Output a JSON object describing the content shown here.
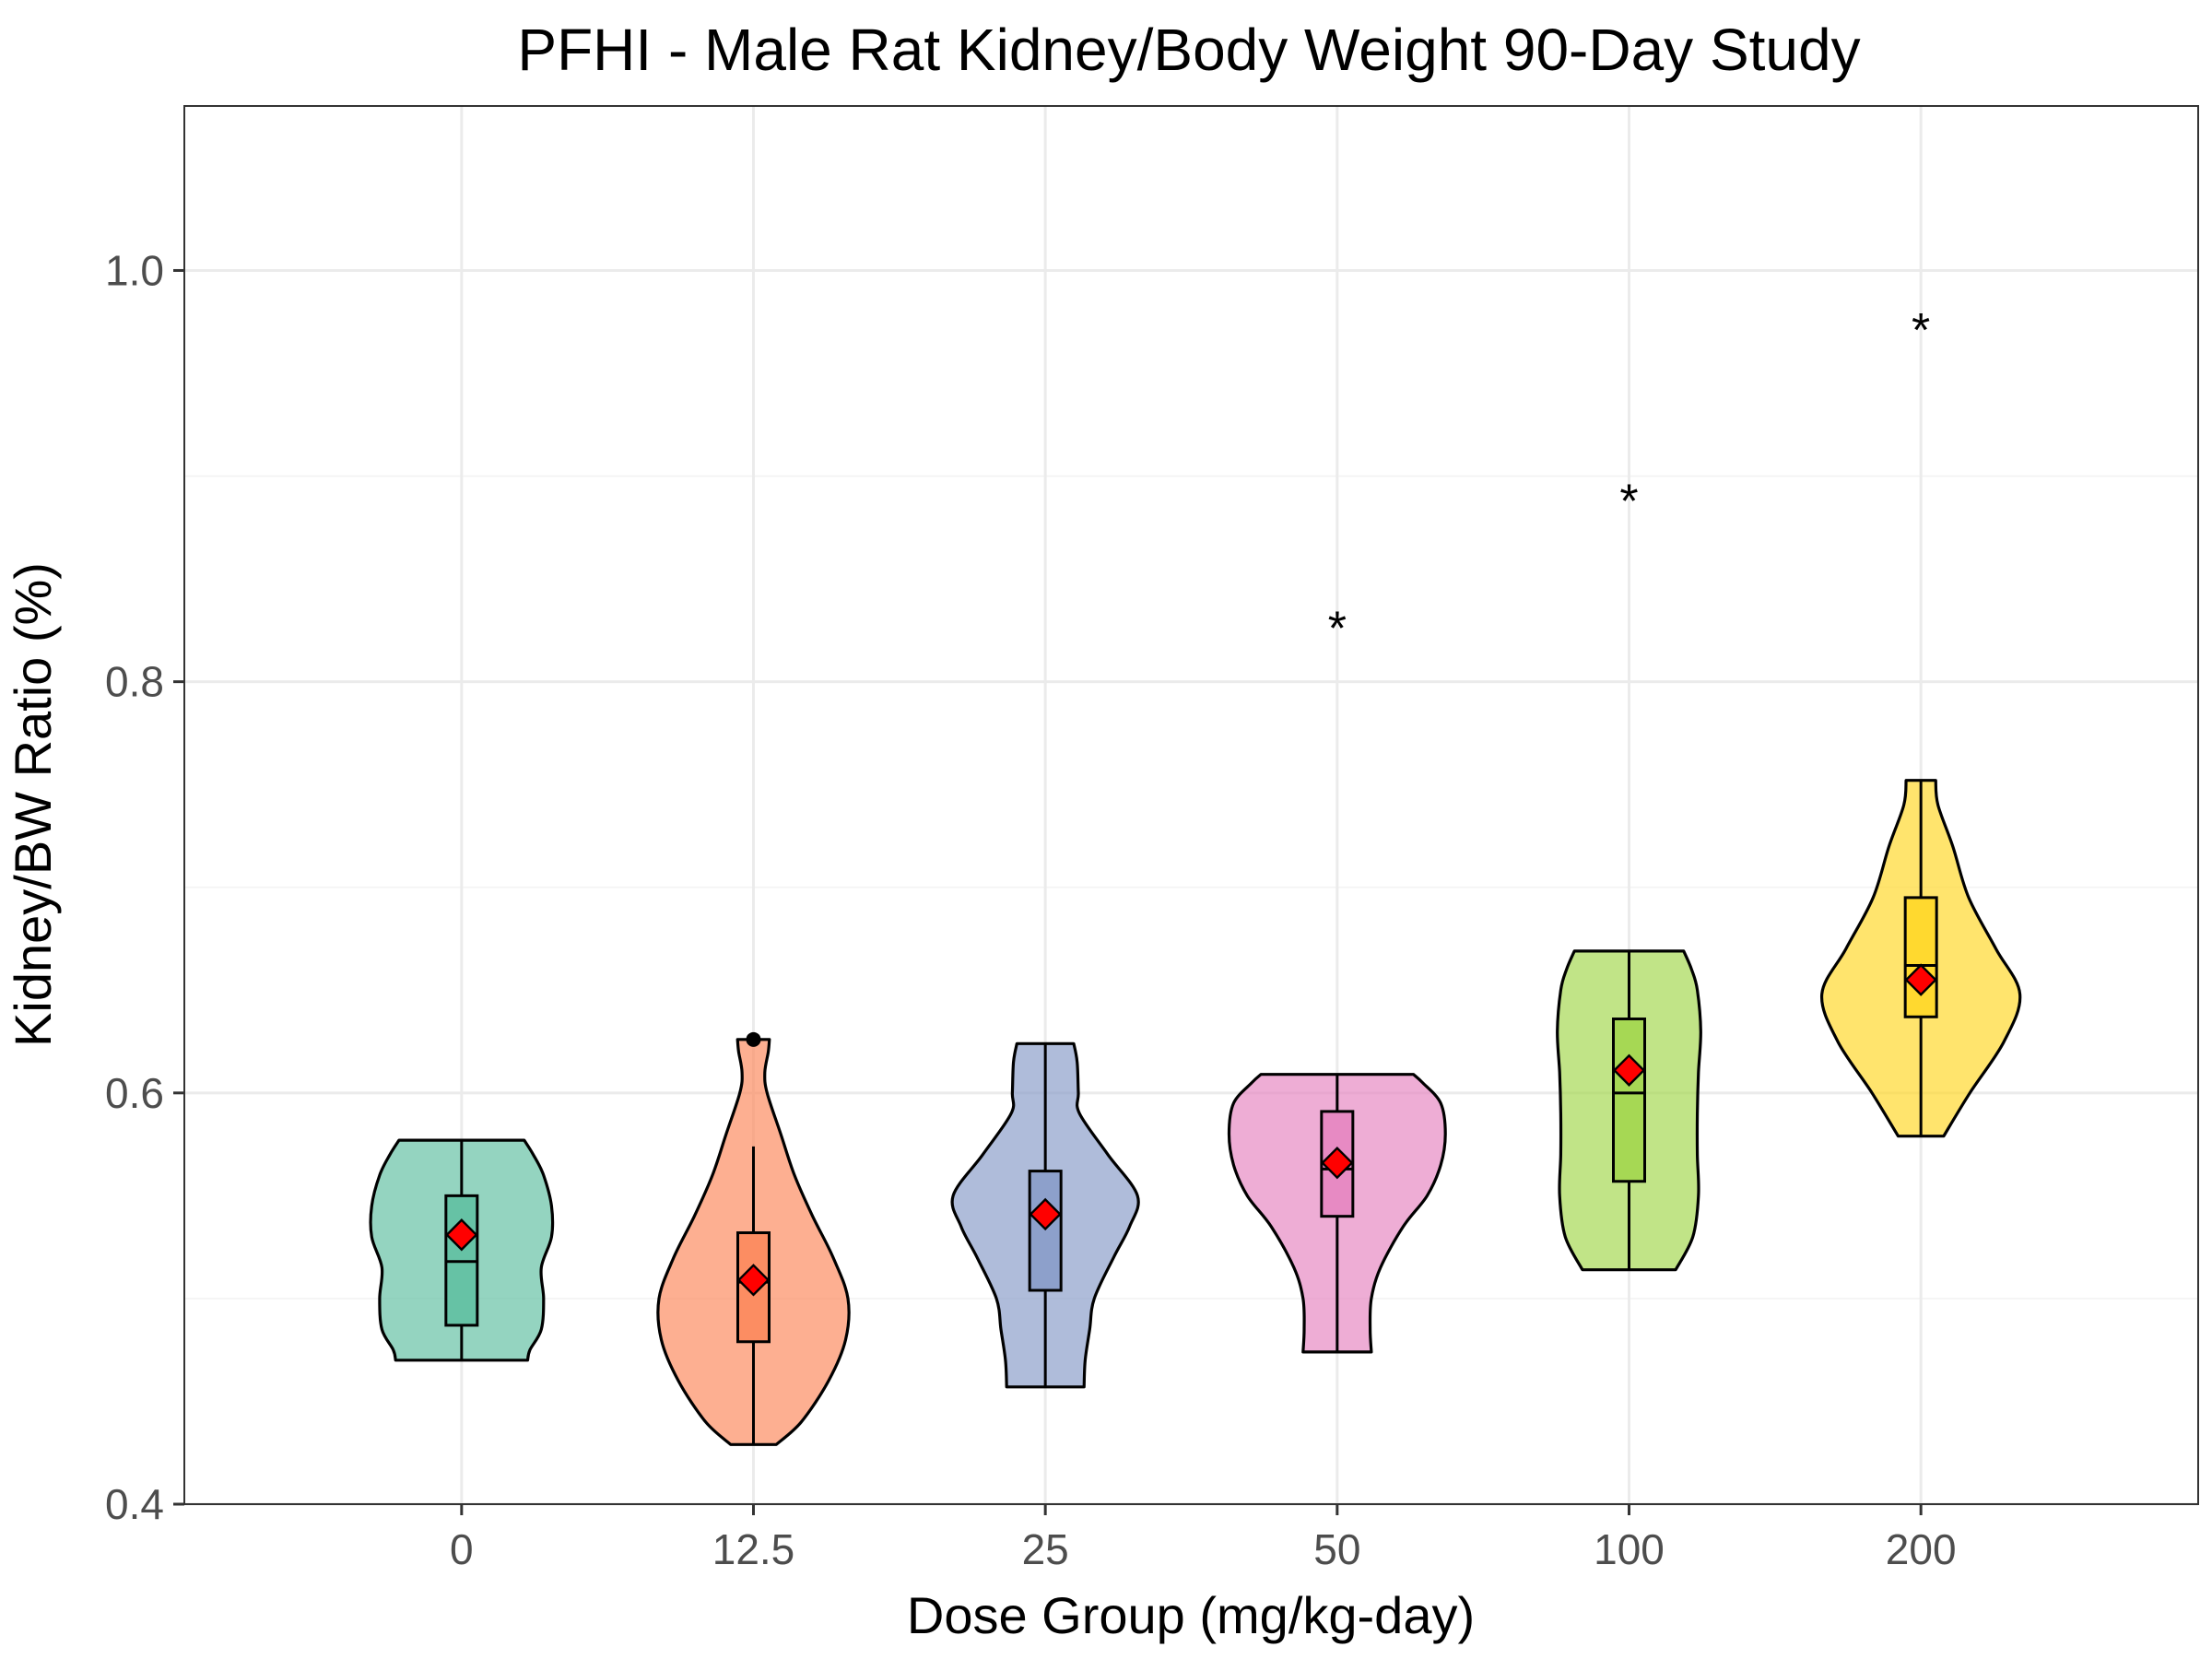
{
  "chart_data": {
    "type": "violin",
    "title": "PFHI - Male Rat Kidney/Body Weight 90-Day Study",
    "xlabel": "Dose Group (mg/kg-day)",
    "ylabel": "Kidney/BW Ratio (%)",
    "ylim": [
      0.4,
      1.08
    ],
    "yticks": [
      0.4,
      0.6,
      0.8,
      1.0
    ],
    "ytick_labels": [
      "0.4",
      "0.6",
      "0.8",
      "1.0"
    ],
    "grid": true,
    "legend": "none",
    "categories": [
      "0",
      "12.5",
      "25",
      "50",
      "100",
      "200"
    ],
    "groups": [
      {
        "dose": "0",
        "fill": "#66C2A5",
        "min": 0.47,
        "q1": 0.487,
        "median": 0.518,
        "q3": 0.55,
        "max": 0.577,
        "mean": 0.531,
        "outliers": [],
        "significance": "",
        "density": [
          [
            0.47,
            0.58
          ],
          [
            0.475,
            0.6
          ],
          [
            0.485,
            0.7
          ],
          [
            0.5,
            0.72
          ],
          [
            0.515,
            0.7
          ],
          [
            0.53,
            0.79
          ],
          [
            0.545,
            0.79
          ],
          [
            0.56,
            0.72
          ],
          [
            0.57,
            0.63
          ],
          [
            0.577,
            0.55
          ]
        ]
      },
      {
        "dose": "12.5",
        "fill": "#FC8D62",
        "min": 0.429,
        "q1": 0.479,
        "median": 0.508,
        "q3": 0.532,
        "max": 0.574,
        "mean": 0.509,
        "outliers": [
          0.626
        ],
        "significance": "",
        "density": [
          [
            0.429,
            0.2
          ],
          [
            0.44,
            0.42
          ],
          [
            0.46,
            0.66
          ],
          [
            0.48,
            0.81
          ],
          [
            0.5,
            0.83
          ],
          [
            0.52,
            0.7
          ],
          [
            0.54,
            0.52
          ],
          [
            0.56,
            0.36
          ],
          [
            0.58,
            0.24
          ],
          [
            0.6,
            0.12
          ],
          [
            0.61,
            0.1
          ],
          [
            0.62,
            0.13
          ],
          [
            0.626,
            0.14
          ]
        ]
      },
      {
        "dose": "25",
        "fill": "#8DA0CB",
        "min": 0.457,
        "q1": 0.504,
        "median": 0.541,
        "q3": 0.562,
        "max": 0.624,
        "mean": 0.541,
        "outliers": [],
        "significance": "",
        "density": [
          [
            0.457,
            0.34
          ],
          [
            0.47,
            0.35
          ],
          [
            0.485,
            0.39
          ],
          [
            0.5,
            0.43
          ],
          [
            0.52,
            0.6
          ],
          [
            0.535,
            0.74
          ],
          [
            0.55,
            0.81
          ],
          [
            0.57,
            0.55
          ],
          [
            0.59,
            0.3
          ],
          [
            0.6,
            0.29
          ],
          [
            0.615,
            0.28
          ],
          [
            0.624,
            0.25
          ]
        ]
      },
      {
        "dose": "50",
        "fill": "#E78AC3",
        "min": 0.474,
        "q1": 0.54,
        "median": 0.563,
        "q3": 0.591,
        "max": 0.609,
        "mean": 0.566,
        "outliers": [],
        "significance": "*",
        "significance_y": 0.835,
        "density": [
          [
            0.474,
            0.3
          ],
          [
            0.485,
            0.29
          ],
          [
            0.5,
            0.3
          ],
          [
            0.515,
            0.38
          ],
          [
            0.535,
            0.58
          ],
          [
            0.55,
            0.79
          ],
          [
            0.565,
            0.91
          ],
          [
            0.58,
            0.95
          ],
          [
            0.595,
            0.91
          ],
          [
            0.605,
            0.75
          ],
          [
            0.609,
            0.67
          ]
        ]
      },
      {
        "dose": "100",
        "fill": "#A6D854",
        "min": 0.514,
        "q1": 0.557,
        "median": 0.6,
        "q3": 0.636,
        "max": 0.669,
        "mean": 0.611,
        "outliers": [],
        "significance": "*",
        "significance_y": 0.897,
        "density": [
          [
            0.514,
            0.41
          ],
          [
            0.53,
            0.56
          ],
          [
            0.55,
            0.61
          ],
          [
            0.57,
            0.6
          ],
          [
            0.59,
            0.6
          ],
          [
            0.61,
            0.61
          ],
          [
            0.63,
            0.63
          ],
          [
            0.65,
            0.6
          ],
          [
            0.66,
            0.55
          ],
          [
            0.669,
            0.48
          ]
        ]
      },
      {
        "dose": "200",
        "fill": "#FFD92F",
        "min": 0.579,
        "q1": 0.637,
        "median": 0.662,
        "q3": 0.695,
        "max": 0.752,
        "mean": 0.655,
        "outliers": [],
        "significance": "*",
        "significance_y": 0.98,
        "density": [
          [
            0.579,
            0.2
          ],
          [
            0.6,
            0.43
          ],
          [
            0.625,
            0.73
          ],
          [
            0.648,
            0.87
          ],
          [
            0.67,
            0.66
          ],
          [
            0.695,
            0.42
          ],
          [
            0.72,
            0.28
          ],
          [
            0.74,
            0.15
          ],
          [
            0.752,
            0.13
          ]
        ]
      }
    ],
    "box_outline": "#000000",
    "mean_marker": {
      "shape": "diamond",
      "fill": "#FF0000"
    }
  }
}
